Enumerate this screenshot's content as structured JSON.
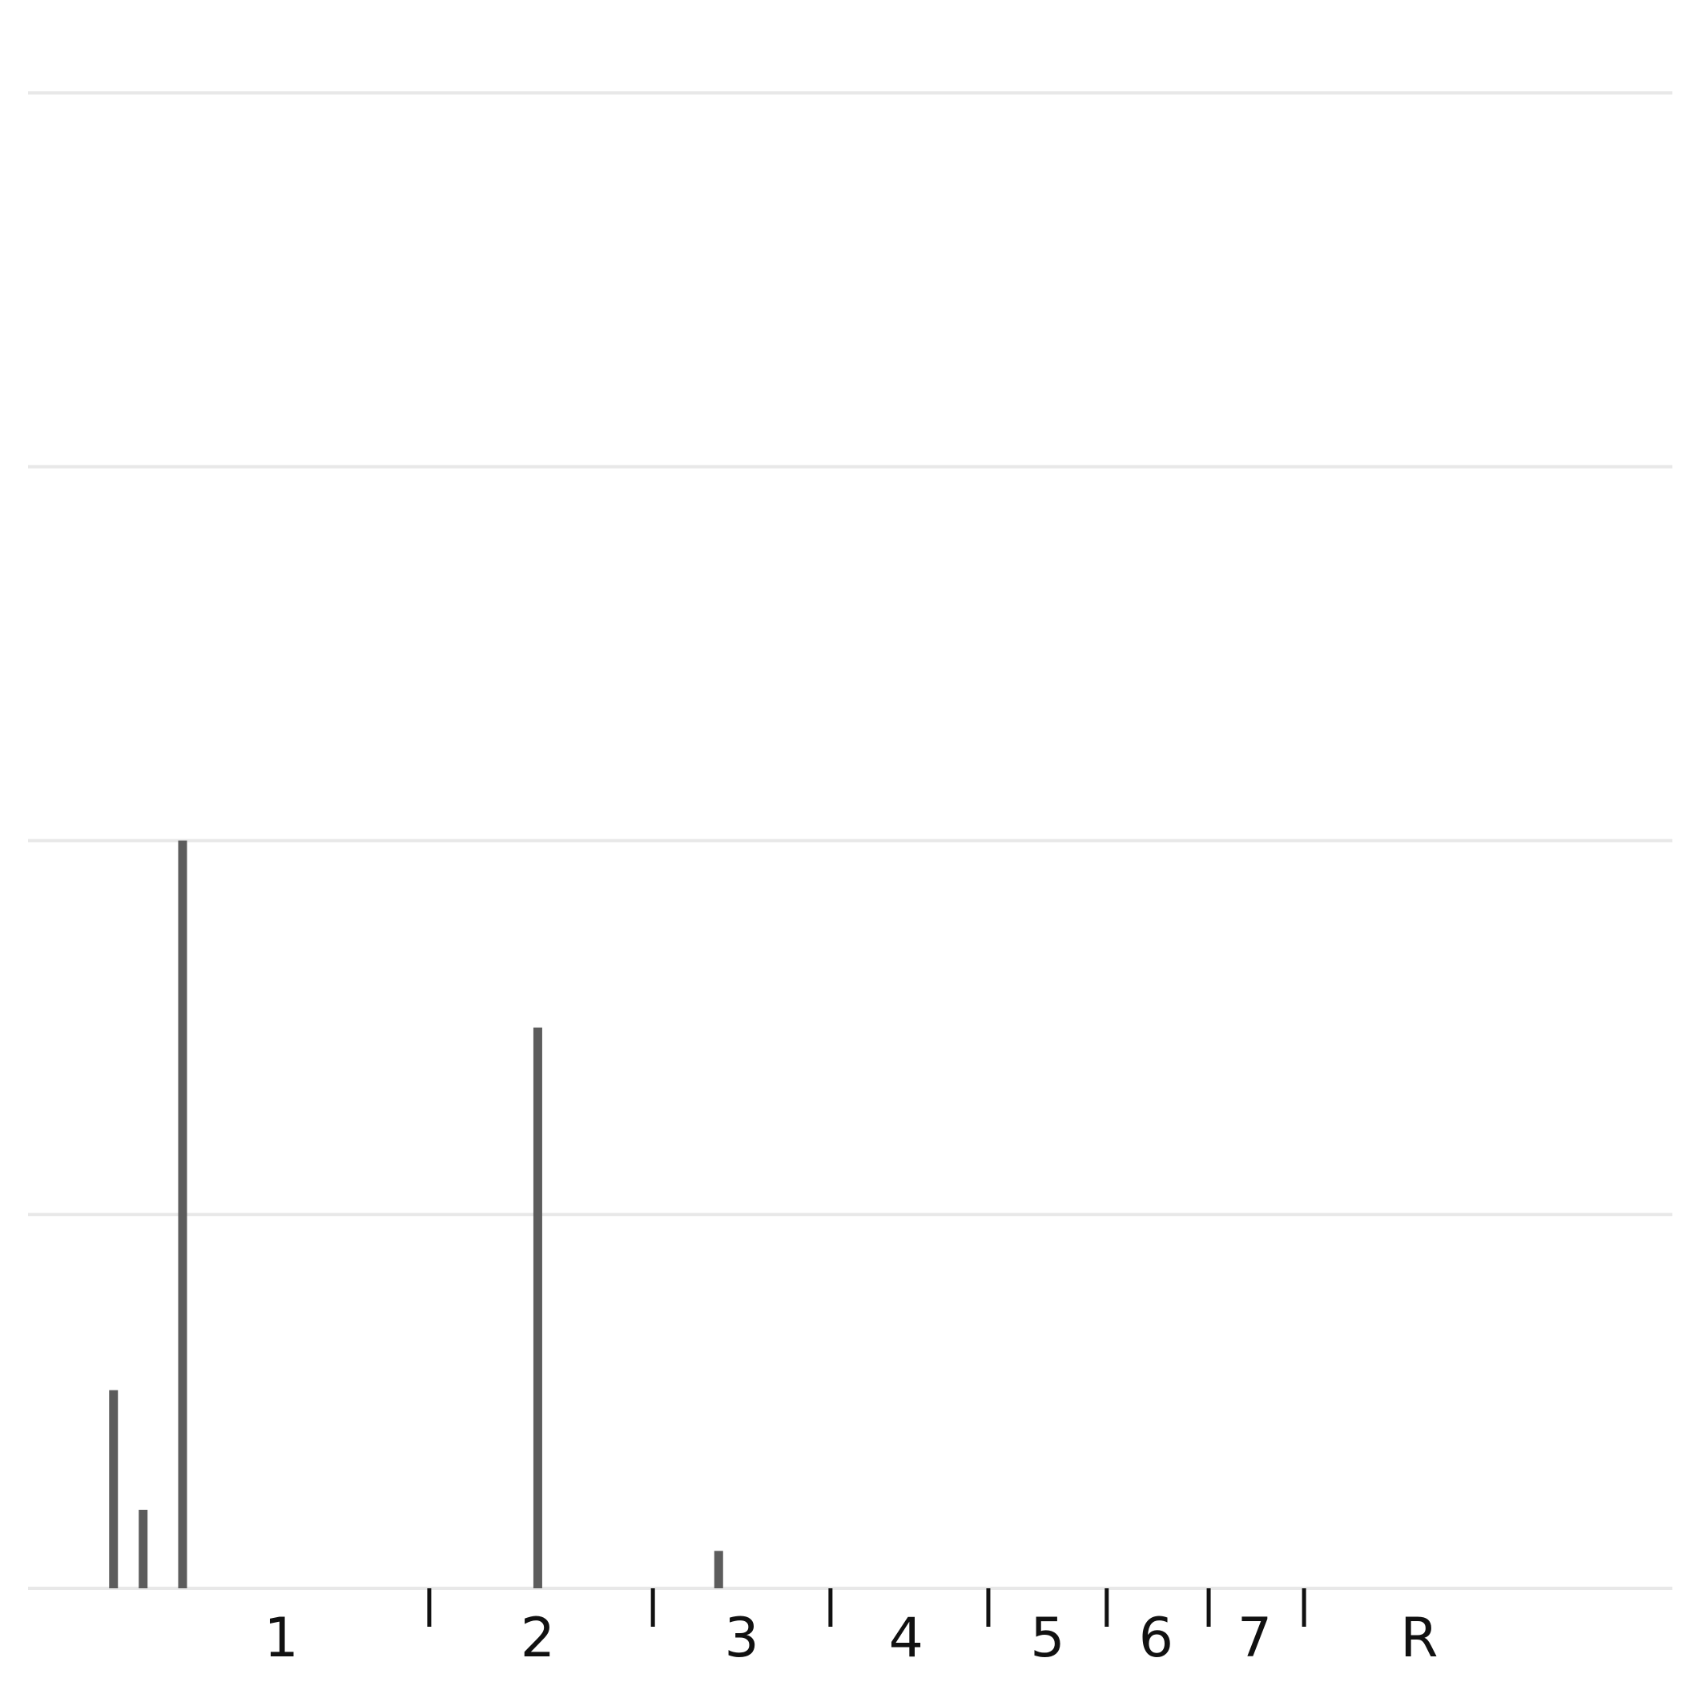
{
  "chart_data": {
    "type": "bar",
    "title": "",
    "xlabel": "",
    "ylabel": "",
    "ylim": [
      0,
      4
    ],
    "grid": {
      "y": true,
      "x": false
    },
    "y_gridlines": [
      0,
      1,
      2,
      3,
      4
    ],
    "colors": {
      "bar": "#5c5c5c",
      "grid": "#e8e8e8",
      "text": "#111111"
    },
    "categories": [
      "1",
      "2",
      "3",
      "4",
      "5",
      "6",
      "7",
      "R"
    ],
    "bars": [
      {
        "category": "1",
        "x": 0.21,
        "value": 0.53
      },
      {
        "category": "1",
        "x": 0.3,
        "value": 0.21
      },
      {
        "category": "1",
        "x": 0.42,
        "value": 2.0
      },
      {
        "category": "2",
        "x": 1.5,
        "value": 1.5
      },
      {
        "category": "3",
        "x": 2.05,
        "value": 0.1
      }
    ],
    "x_range": [
      -0.05,
      4.95
    ],
    "category_centers": [
      0.72,
      1.5,
      2.12,
      2.62,
      3.05,
      3.38,
      3.68,
      4.18
    ],
    "category_boundaries": [
      1.17,
      1.85,
      2.39,
      2.87,
      3.23,
      3.54,
      3.83
    ]
  }
}
